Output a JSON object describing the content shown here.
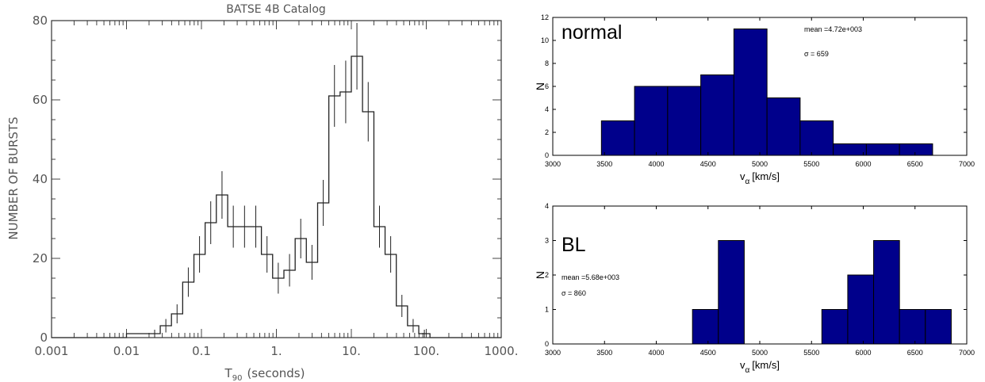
{
  "chart_data": [
    {
      "type": "line",
      "title": "BATSE 4B Catalog",
      "xlabel": "T",
      "xlabel_sub": "90",
      "xlabel_tail": "(seconds)",
      "ylabel": "NUMBER OF BURSTS",
      "x_scale": "log",
      "xlim": [
        0.001,
        1000
      ],
      "ylim": [
        0,
        80
      ],
      "x_ticks": [
        0.001,
        0.01,
        0.1,
        1,
        10,
        100,
        1000
      ],
      "x_tick_labels": [
        "0.001",
        "0.01",
        "0.1",
        "1.",
        "10.",
        "100.",
        "1000."
      ],
      "y_ticks": [
        0,
        20,
        40,
        60,
        80
      ],
      "y_tick_labels": [
        "0",
        "20",
        "40",
        "60",
        "80"
      ],
      "bin_edges": [
        0.01,
        0.0141,
        0.02,
        0.0282,
        0.0398,
        0.0562,
        0.0794,
        0.112,
        0.158,
        0.224,
        0.316,
        0.447,
        0.631,
        0.891,
        1.26,
        1.78,
        2.51,
        3.55,
        5.01,
        7.08,
        10.0,
        14.1,
        20.0,
        28.2,
        39.8,
        56.2,
        79.4,
        112,
        158,
        224,
        316,
        447,
        631
      ],
      "counts": [
        1,
        1,
        1,
        3,
        6,
        14,
        21,
        29,
        36,
        28,
        28,
        28,
        21,
        15,
        17,
        25,
        19,
        34,
        61,
        62,
        71,
        57,
        28,
        21,
        8,
        3,
        1,
        0,
        0,
        0,
        0,
        0
      ],
      "errors": [
        0,
        0,
        1,
        1.7,
        2.4,
        3.7,
        4.6,
        5.4,
        6.0,
        5.3,
        5.3,
        5.3,
        4.6,
        3.9,
        4.1,
        5.0,
        4.4,
        5.8,
        7.8,
        7.9,
        8.4,
        7.5,
        5.3,
        4.6,
        2.8,
        1.7,
        1.0,
        0,
        0,
        0,
        0,
        0
      ]
    },
    {
      "type": "bar",
      "annotation": "normal",
      "stat_mean": "mean =4.72e+003",
      "stat_sigma": "σ = 659",
      "xlabel": "v",
      "xlabel_sub": "α",
      "xlabel_unit": "[km/s]",
      "ylabel": "N",
      "xlim": [
        3000,
        7000
      ],
      "ylim": [
        0,
        12
      ],
      "x_ticks": [
        3000,
        3500,
        4000,
        4500,
        5000,
        5500,
        6000,
        6500,
        7000
      ],
      "y_ticks": [
        0,
        2,
        4,
        6,
        8,
        10,
        12
      ],
      "bin_edges": [
        3470,
        3790,
        4110,
        4430,
        4750,
        5070,
        5390,
        5710,
        6030,
        6350,
        6670
      ],
      "values": [
        3,
        6,
        6,
        7,
        11,
        5,
        3,
        1,
        1,
        1
      ],
      "color": "#00008b"
    },
    {
      "type": "bar",
      "annotation": "BL",
      "stat_mean": "mean =5.68e+003",
      "stat_sigma": "σ = 860",
      "xlabel": "v",
      "xlabel_sub": "α",
      "xlabel_unit": "[km/s]",
      "ylabel": "N",
      "xlim": [
        3000,
        7000
      ],
      "ylim": [
        0,
        4
      ],
      "x_ticks": [
        3000,
        3500,
        4000,
        4500,
        5000,
        5500,
        6000,
        6500,
        7000
      ],
      "y_ticks": [
        0,
        1,
        2,
        3,
        4
      ],
      "bin_edges": [
        4350,
        4600,
        4850,
        5100,
        5350,
        5600,
        5850,
        6100,
        6350,
        6600,
        6850
      ],
      "values": [
        1,
        3,
        0,
        0,
        0,
        1,
        2,
        3,
        1,
        1
      ],
      "color": "#00008b"
    }
  ]
}
